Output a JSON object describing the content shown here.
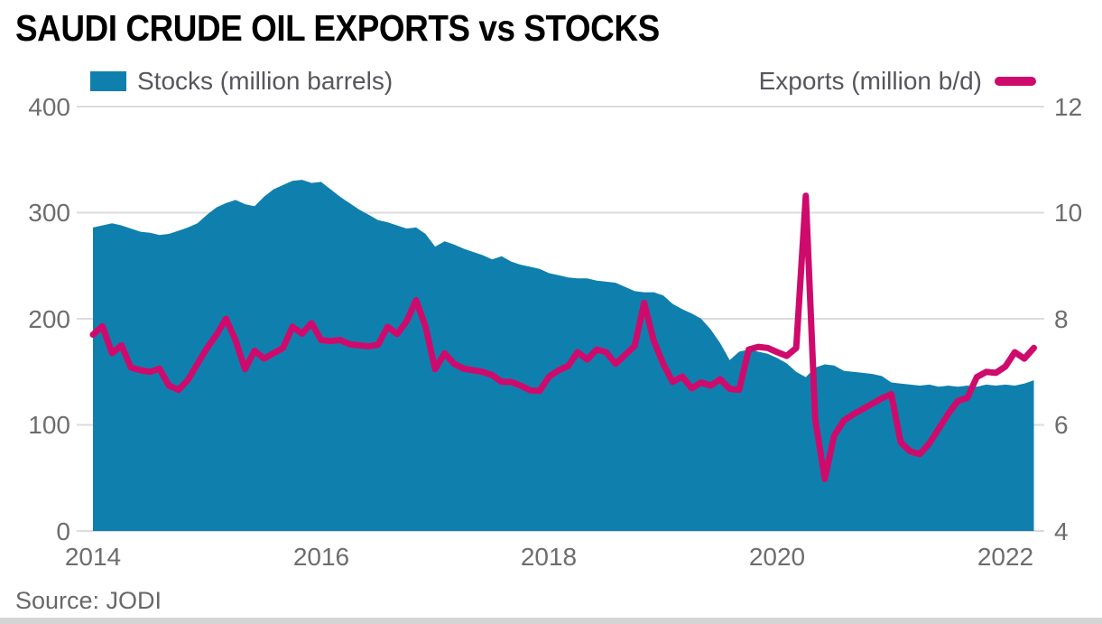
{
  "title": "SAUDI CRUDE OIL EXPORTS vs STOCKS",
  "source": "Source: JODI",
  "legend": {
    "stocks_label": "Stocks (million barrels)",
    "exports_label": "Exports (million b/d)"
  },
  "colors": {
    "stocks_area": "#0f80ae",
    "exports_line": "#ce0b6c",
    "gridline": "#dcdcdc",
    "axis_text": "#6d6d6d"
  },
  "chart_data": {
    "type": "area",
    "subtype": "monthly dual-axis time series: blue area (stocks, left axis) + magenta line (exports, right axis)",
    "x_start": "2014-01",
    "x_end": "2022-04",
    "x_tick_labels": [
      "2014",
      "2016",
      "2018",
      "2020",
      "2022"
    ],
    "grid": "horizontal gridlines only",
    "left_axis": {
      "title": "Stocks (million barrels)",
      "ticks": [
        400,
        300,
        200,
        100,
        0
      ],
      "range": [
        0,
        400
      ]
    },
    "right_axis": {
      "title": "Exports (million b/d)",
      "ticks": [
        12,
        10,
        8,
        6,
        4
      ],
      "range": [
        4,
        12
      ]
    },
    "series": [
      {
        "name": "Stocks (million barrels)",
        "type": "area",
        "axis": "left",
        "color": "#0f80ae",
        "values": [
          286,
          288,
          290,
          288,
          285,
          282,
          281,
          279,
          280,
          283,
          286,
          290,
          298,
          305,
          309,
          312,
          308,
          306,
          315,
          322,
          326,
          330,
          331,
          328,
          329,
          322,
          315,
          309,
          303,
          298,
          293,
          291,
          288,
          285,
          286,
          280,
          268,
          273,
          270,
          266,
          263,
          260,
          256,
          259,
          254,
          251,
          249,
          247,
          243,
          241,
          239,
          238,
          238,
          236,
          235,
          234,
          230,
          226,
          225,
          225,
          222,
          214,
          209,
          205,
          200,
          190,
          177,
          161,
          169,
          171,
          169,
          167,
          163,
          158,
          150,
          145,
          154,
          157,
          156,
          151,
          150,
          149,
          148,
          146,
          140,
          139,
          138,
          137,
          138,
          136,
          137,
          136,
          137,
          136,
          138,
          137,
          138,
          137,
          139,
          142
        ]
      },
      {
        "name": "Exports (million b/d)",
        "type": "line",
        "axis": "right",
        "color": "#ce0b6c",
        "values": [
          7.7,
          7.86,
          7.35,
          7.5,
          7.08,
          7.03,
          7.0,
          7.06,
          6.74,
          6.66,
          6.85,
          7.15,
          7.45,
          7.7,
          8.0,
          7.6,
          7.05,
          7.4,
          7.25,
          7.35,
          7.45,
          7.85,
          7.72,
          7.92,
          7.6,
          7.58,
          7.6,
          7.52,
          7.5,
          7.48,
          7.51,
          7.85,
          7.71,
          7.95,
          8.35,
          7.85,
          7.05,
          7.35,
          7.15,
          7.06,
          7.03,
          7.0,
          6.94,
          6.81,
          6.81,
          6.74,
          6.65,
          6.64,
          6.91,
          7.03,
          7.11,
          7.37,
          7.23,
          7.42,
          7.37,
          7.15,
          7.32,
          7.49,
          8.3,
          7.59,
          7.15,
          6.81,
          6.91,
          6.69,
          6.8,
          6.74,
          6.86,
          6.68,
          6.66,
          7.42,
          7.47,
          7.45,
          7.37,
          7.3,
          7.45,
          10.32,
          6.1,
          4.98,
          5.8,
          6.08,
          6.2,
          6.3,
          6.4,
          6.5,
          6.58,
          5.67,
          5.5,
          5.45,
          5.65,
          5.93,
          6.21,
          6.45,
          6.51,
          6.9,
          7.0,
          6.98,
          7.1,
          7.37,
          7.25,
          7.45
        ]
      }
    ]
  }
}
